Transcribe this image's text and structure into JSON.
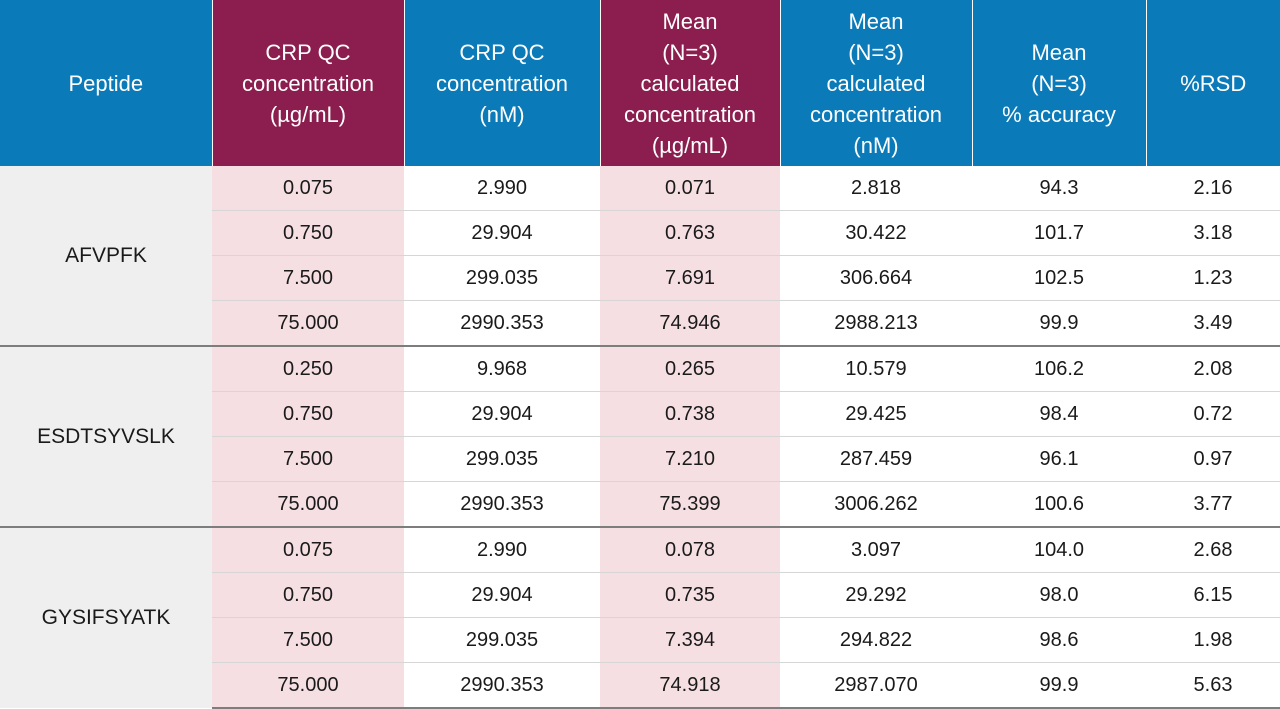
{
  "headers": [
    {
      "lines": [
        "Peptide"
      ],
      "accent": false
    },
    {
      "lines": [
        "CRP QC",
        "concentration",
        "(µg/mL)"
      ],
      "accent": true
    },
    {
      "lines": [
        "CRP QC",
        "concentration",
        "(nM)"
      ],
      "accent": false
    },
    {
      "lines": [
        "Mean",
        "(N=3)",
        "calculated",
        "concentration",
        "(µg/mL)"
      ],
      "accent": true
    },
    {
      "lines": [
        "Mean",
        "(N=3)",
        "calculated",
        "concentration",
        "(nM)"
      ],
      "accent": false
    },
    {
      "lines": [
        "Mean",
        "(N=3)",
        "% accuracy"
      ],
      "accent": false
    },
    {
      "lines": [
        "%RSD"
      ],
      "accent": false
    }
  ],
  "groups": [
    {
      "peptide": "AFVPFK",
      "rows": [
        [
          "0.075",
          "2.990",
          "0.071",
          "2.818",
          "94.3",
          "2.16"
        ],
        [
          "0.750",
          "29.904",
          "0.763",
          "30.422",
          "101.7",
          "3.18"
        ],
        [
          "7.500",
          "299.035",
          "7.691",
          "306.664",
          "102.5",
          "1.23"
        ],
        [
          "75.000",
          "2990.353",
          "74.946",
          "2988.213",
          "99.9",
          "3.49"
        ]
      ]
    },
    {
      "peptide": "ESDTSYVSLK",
      "rows": [
        [
          "0.250",
          "9.968",
          "0.265",
          "10.579",
          "106.2",
          "2.08"
        ],
        [
          "0.750",
          "29.904",
          "0.738",
          "29.425",
          "98.4",
          "0.72"
        ],
        [
          "7.500",
          "299.035",
          "7.210",
          "287.459",
          "96.1",
          "0.97"
        ],
        [
          "75.000",
          "2990.353",
          "75.399",
          "3006.262",
          "100.6",
          "3.77"
        ]
      ]
    },
    {
      "peptide": "GYSIFSYATK",
      "rows": [
        [
          "0.075",
          "2.990",
          "0.078",
          "3.097",
          "104.0",
          "2.68"
        ],
        [
          "0.750",
          "29.904",
          "0.735",
          "29.292",
          "98.0",
          "6.15"
        ],
        [
          "7.500",
          "299.035",
          "7.394",
          "294.822",
          "98.6",
          "1.98"
        ],
        [
          "75.000",
          "2990.353",
          "74.918",
          "2987.070",
          "99.9",
          "5.63"
        ]
      ]
    }
  ],
  "colors": {
    "header_blue": "#0a7ab8",
    "header_maroon": "#8b1e4e",
    "accent_cell_pink": "#f5dfe3",
    "peptide_cell_gray": "#f0eff0"
  }
}
